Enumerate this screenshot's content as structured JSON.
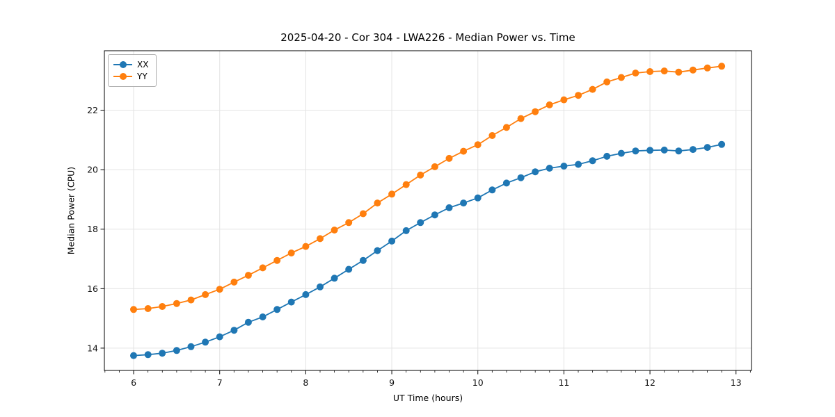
{
  "chart_data": {
    "type": "line",
    "title": "2025-04-20 - Cor 304 - LWA226 - Median Power vs. Time",
    "xlabel": "UT Time (hours)",
    "ylabel": "Median Power (CPU)",
    "x": [
      6.0,
      6.167,
      6.333,
      6.5,
      6.667,
      6.833,
      7.0,
      7.167,
      7.333,
      7.5,
      7.667,
      7.833,
      8.0,
      8.167,
      8.333,
      8.5,
      8.667,
      8.833,
      9.0,
      9.167,
      9.333,
      9.5,
      9.667,
      9.833,
      10.0,
      10.167,
      10.333,
      10.5,
      10.667,
      10.833,
      11.0,
      11.167,
      11.333,
      11.5,
      11.667,
      11.833,
      12.0,
      12.167,
      12.333,
      12.5,
      12.667,
      12.833
    ],
    "series": [
      {
        "name": "XX",
        "color": "#1f77b4",
        "marker": "circle",
        "values": [
          13.75,
          13.78,
          13.83,
          13.92,
          14.05,
          14.2,
          14.38,
          14.6,
          14.87,
          15.05,
          15.3,
          15.55,
          15.8,
          16.06,
          16.35,
          16.65,
          16.95,
          17.28,
          17.6,
          17.95,
          18.22,
          18.48,
          18.72,
          18.88,
          19.05,
          19.32,
          19.55,
          19.73,
          19.93,
          20.05,
          20.12,
          20.18,
          20.3,
          20.45,
          20.55,
          20.63,
          20.65,
          20.66,
          20.63,
          20.68,
          20.75,
          20.85
        ]
      },
      {
        "name": "YY",
        "color": "#ff7f0e",
        "marker": "circle",
        "values": [
          15.3,
          15.33,
          15.4,
          15.5,
          15.62,
          15.8,
          15.98,
          16.22,
          16.45,
          16.7,
          16.95,
          17.2,
          17.42,
          17.68,
          17.97,
          18.22,
          18.52,
          18.88,
          19.18,
          19.5,
          19.82,
          20.1,
          20.38,
          20.62,
          20.84,
          21.15,
          21.42,
          21.72,
          21.95,
          22.18,
          22.35,
          22.5,
          22.7,
          22.95,
          23.1,
          23.25,
          23.3,
          23.32,
          23.28,
          23.35,
          23.42,
          23.48
        ]
      }
    ],
    "xlim": [
      5.66,
      13.18
    ],
    "ylim": [
      13.25,
      24.0
    ],
    "x_major_ticks": [
      6,
      7,
      8,
      9,
      10,
      11,
      12,
      13
    ],
    "x_tick_labels": [
      "6",
      "7",
      "8",
      "9",
      "10",
      "11",
      "12",
      "13"
    ],
    "x_minor_tick_step": 0.1667,
    "y_major_ticks": [
      14,
      16,
      18,
      20,
      22
    ],
    "y_tick_labels": [
      "14",
      "16",
      "18",
      "20",
      "22"
    ],
    "grid": true,
    "legend_position": "upper left",
    "colors": {
      "grid": "#e3e3e3",
      "spine": "#000000",
      "tick_text": "#111111",
      "background": "#ffffff"
    }
  },
  "legend": {
    "items": [
      {
        "label": "XX",
        "color": "#1f77b4"
      },
      {
        "label": "YY",
        "color": "#ff7f0e"
      }
    ]
  }
}
